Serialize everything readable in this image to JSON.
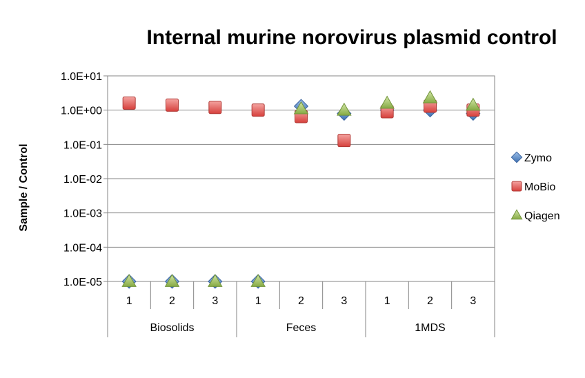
{
  "chart_data": {
    "type": "scatter",
    "title": "Internal murine norovirus plasmid control",
    "ylabel": "Sample / Control",
    "xlabel": "",
    "y_scale": "log",
    "ylim": [
      1e-05,
      10
    ],
    "y_ticks": [
      1e-05,
      0.0001,
      0.001,
      0.01,
      0.1,
      1,
      10
    ],
    "y_tick_labels": [
      "1.0E-05",
      "1.0E-04",
      "1.0E-03",
      "1.0E-02",
      "1.0E-01",
      "1.0E+00",
      "1.0E+01"
    ],
    "categories": [
      "1",
      "2",
      "3",
      "1",
      "2",
      "3",
      "1",
      "2",
      "3"
    ],
    "groups": [
      {
        "label": "Biosolids",
        "count": 3
      },
      {
        "label": "Feces",
        "count": 3
      },
      {
        "label": "1MDS",
        "count": 3
      }
    ],
    "series": [
      {
        "name": "Zymo",
        "marker": "diamond",
        "color": "#4F81BD",
        "values": [
          1e-05,
          1e-05,
          1e-05,
          1e-05,
          1.3,
          0.8,
          1.0,
          1.0,
          0.8
        ]
      },
      {
        "name": "MoBio",
        "marker": "square",
        "color": "#E05A56",
        "values": [
          1.6,
          1.4,
          1.2,
          1.0,
          0.65,
          0.13,
          0.9,
          1.3,
          1.0
        ]
      },
      {
        "name": "Qiagen",
        "marker": "triangle",
        "color": "#9BBB59",
        "values": [
          1e-05,
          1e-05,
          1e-05,
          1e-05,
          1.1,
          1.0,
          1.6,
          2.3,
          1.4
        ]
      }
    ],
    "legend_position": "right",
    "grid": true
  }
}
